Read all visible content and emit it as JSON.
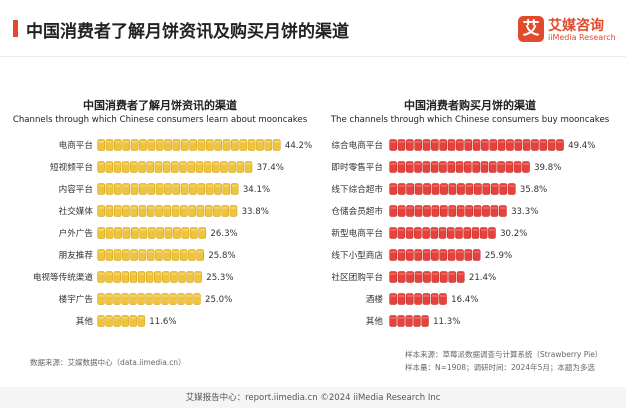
{
  "header": {
    "title": "中国消费者了解月饼资讯及购买月饼的渠道",
    "logo_mark": "艾",
    "logo_name": "艾媒咨询",
    "logo_sub": "iiMedia Research"
  },
  "chart_data": [
    {
      "type": "bar",
      "orientation": "horizontal",
      "title": "中国消费者了解月饼资讯的渠道",
      "subtitle": "Channels through which Chinese consumers learn about mooncakes",
      "categories": [
        "电商平台",
        "短视频平台",
        "内容平台",
        "社交媒体",
        "户外广告",
        "朋友推荐",
        "电视等传统渠道",
        "楼宇广告",
        "其他"
      ],
      "values": [
        44.2,
        37.4,
        34.1,
        33.8,
        26.3,
        25.8,
        25.3,
        25.0,
        11.6
      ],
      "data_labels": [
        "44.2%",
        "37.4%",
        "34.1%",
        "33.8%",
        "26.3%",
        "25.8%",
        "25.3%",
        "25.0%",
        "11.6%"
      ],
      "unit": "%",
      "xlim": [
        0,
        50
      ],
      "grid": false,
      "bar_color": "#f0c43a"
    },
    {
      "type": "bar",
      "orientation": "horizontal",
      "title": "中国消费者购买月饼的渠道",
      "subtitle": "The channels through which Chinese consumers buy mooncakes",
      "categories": [
        "综合电商平台",
        "即时零售平台",
        "线下综合超市",
        "仓储会员超市",
        "新型电商平台",
        "线下小型商店",
        "社区团购平台",
        "酒楼",
        "其他"
      ],
      "values": [
        49.4,
        39.8,
        35.8,
        33.3,
        30.2,
        25.9,
        21.4,
        16.4,
        11.3
      ],
      "data_labels": [
        "49.4%",
        "39.8%",
        "35.8%",
        "33.3%",
        "30.2%",
        "25.9%",
        "21.4%",
        "16.4%",
        "11.3%"
      ],
      "unit": "%",
      "xlim": [
        0,
        55
      ],
      "grid": false,
      "bar_color": "#e8413c"
    }
  ],
  "footer": {
    "source_left": "数据来源：艾媒数据中心（data.iimedia.cn）",
    "sample_source": "样本来源：草莓派数据调查与计算系统（Strawberry Pie）",
    "sample_info": "样本量：N=1908；调研时间：2024年5月；本题为多选",
    "bottom": "艾媒报告中心：report.iimedia.cn    ©2024  iiMedia Research Inc"
  }
}
